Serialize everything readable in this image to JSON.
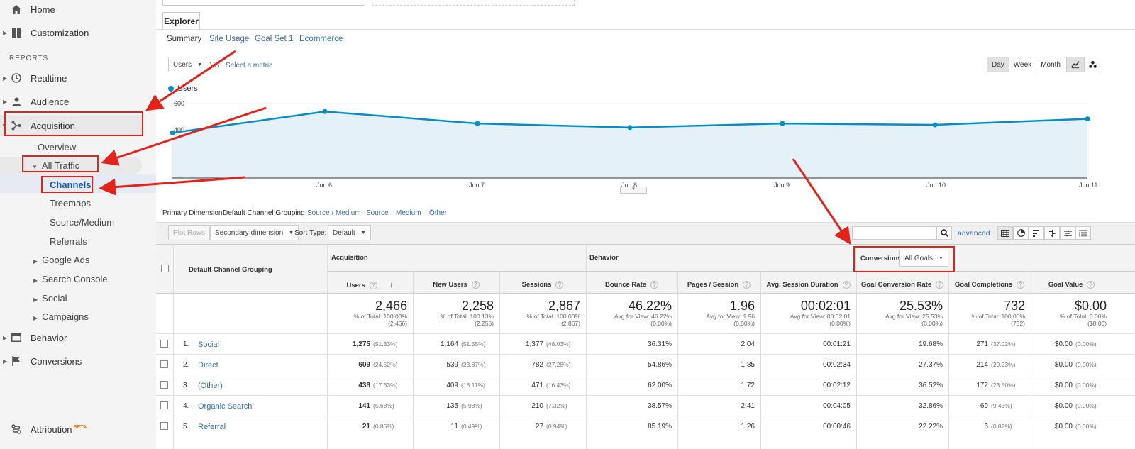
{
  "sidebar": {
    "items": {
      "home": "Home",
      "customization": "Customization",
      "reports_header": "REPORTS",
      "realtime": "Realtime",
      "audience": "Audience",
      "acquisition": "Acquisition",
      "overview": "Overview",
      "all_traffic": "All Traffic",
      "channels": "Channels",
      "treemaps": "Treemaps",
      "source_medium": "Source/Medium",
      "referrals": "Referrals",
      "google_ads": "Google Ads",
      "search_console": "Search Console",
      "social": "Social",
      "campaigns": "Campaigns",
      "behavior": "Behavior",
      "conversions": "Conversions",
      "attribution": "Attribution",
      "beta": "BETA"
    }
  },
  "explorer": {
    "tab": "Explorer",
    "subtabs": [
      "Summary",
      "Site Usage",
      "Goal Set 1",
      "Ecommerce"
    ],
    "metric_select": "Users",
    "vs": "VS.",
    "select_metric": "Select a metric",
    "granularity": [
      "Day",
      "Week",
      "Month"
    ]
  },
  "chart_data": {
    "type": "area",
    "series": [
      {
        "name": "Users",
        "values": [
          340,
          500,
          410,
          380,
          410,
          400,
          445
        ]
      }
    ],
    "x": [
      "",
      "Jun 6",
      "Jun 7",
      "Jun 8",
      "Jun 9",
      "Jun 10",
      "Jun 11"
    ],
    "yticks": [
      "600",
      "400",
      "200"
    ],
    "ylim": [
      0,
      720
    ],
    "color": "#058dc7",
    "fill": "#e4f1f9"
  },
  "dimensions": {
    "label": "Primary Dimension:",
    "active": "Default Channel Grouping",
    "others": [
      "Source / Medium",
      "Source",
      "Medium"
    ],
    "other": "Other"
  },
  "controls": {
    "plot_rows": "Plot Rows",
    "secondary_dimension": "Secondary dimension",
    "sort_type_label": "Sort Type:",
    "sort_type": "Default",
    "advanced": "advanced"
  },
  "table": {
    "dimension_header": "Default Channel Grouping",
    "group_acquisition": "Acquisition",
    "group_behavior": "Behavior",
    "group_conversions": "Conversions",
    "goals_select": "All Goals",
    "columns": [
      "Users",
      "New Users",
      "Sessions",
      "Bounce Rate",
      "Pages / Session",
      "Avg. Session Duration",
      "Goal Conversion Rate",
      "Goal Completions",
      "Goal Value"
    ],
    "totals": [
      {
        "big": "2,466",
        "line1": "% of Total: 100.00%",
        "line2": "(2,466)"
      },
      {
        "big": "2,258",
        "line1": "% of Total: 100.13%",
        "line2": "(2,255)"
      },
      {
        "big": "2,867",
        "line1": "% of Total: 100.00%",
        "line2": "(2,867)"
      },
      {
        "big": "46.22%",
        "line1": "Avg for View: 46.22%",
        "line2": "(0.00%)"
      },
      {
        "big": "1.96",
        "line1": "Avg for View: 1.96",
        "line2": "(0.00%)"
      },
      {
        "big": "00:02:01",
        "line1": "Avg for View: 00:02:01",
        "line2": "(0.00%)"
      },
      {
        "big": "25.53%",
        "line1": "Avg for View: 25.53%",
        "line2": "(0.00%)"
      },
      {
        "big": "732",
        "line1": "% of Total: 100.00%",
        "line2": "(732)"
      },
      {
        "big": "$0.00",
        "line1": "% of Total: 0.00%",
        "line2": "($0.00)"
      }
    ],
    "rows": [
      {
        "idx": "1.",
        "name": "Social",
        "users": "1,275",
        "users_pct": "(51.33%)",
        "new_users": "1,164",
        "new_users_pct": "(51.55%)",
        "sessions": "1,377",
        "sessions_pct": "(48.03%)",
        "bounce": "36.31%",
        "pages": "2.04",
        "duration": "00:01:21",
        "conv_rate": "19.68%",
        "completions": "271",
        "completions_pct": "(37.02%)",
        "value": "$0.00",
        "value_pct": "(0.00%)"
      },
      {
        "idx": "2.",
        "name": "Direct",
        "users": "609",
        "users_pct": "(24.52%)",
        "new_users": "539",
        "new_users_pct": "(23.87%)",
        "sessions": "782",
        "sessions_pct": "(27.28%)",
        "bounce": "54.86%",
        "pages": "1.85",
        "duration": "00:02:34",
        "conv_rate": "27.37%",
        "completions": "214",
        "completions_pct": "(29.23%)",
        "value": "$0.00",
        "value_pct": "(0.00%)"
      },
      {
        "idx": "3.",
        "name": "(Other)",
        "users": "438",
        "users_pct": "(17.63%)",
        "new_users": "409",
        "new_users_pct": "(18.11%)",
        "sessions": "471",
        "sessions_pct": "(16.43%)",
        "bounce": "62.00%",
        "pages": "1.72",
        "duration": "00:02:12",
        "conv_rate": "36.52%",
        "completions": "172",
        "completions_pct": "(23.50%)",
        "value": "$0.00",
        "value_pct": "(0.00%)"
      },
      {
        "idx": "4.",
        "name": "Organic Search",
        "users": "141",
        "users_pct": "(5.68%)",
        "new_users": "135",
        "new_users_pct": "(5.98%)",
        "sessions": "210",
        "sessions_pct": "(7.32%)",
        "bounce": "38.57%",
        "pages": "2.41",
        "duration": "00:04:05",
        "conv_rate": "32.86%",
        "completions": "69",
        "completions_pct": "(9.43%)",
        "value": "$0.00",
        "value_pct": "(0.00%)"
      },
      {
        "idx": "5.",
        "name": "Referral",
        "users": "21",
        "users_pct": "(0.85%)",
        "new_users": "11",
        "new_users_pct": "(0.49%)",
        "sessions": "27",
        "sessions_pct": "(0.94%)",
        "bounce": "85.19%",
        "pages": "1.26",
        "duration": "00:00:46",
        "conv_rate": "22.22%",
        "completions": "6",
        "completions_pct": "(0.82%)",
        "value": "$0.00",
        "value_pct": "(0.00%)"
      }
    ]
  },
  "colors": {
    "accent": "#058dc7",
    "link": "#3b6ea5",
    "annotation": "#e2231a"
  }
}
